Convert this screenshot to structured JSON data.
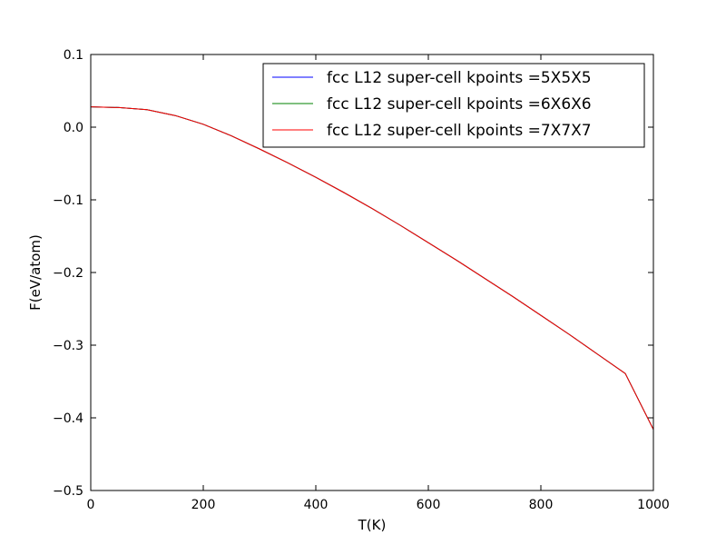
{
  "chart_data": {
    "type": "line",
    "title": "",
    "xlabel": "T(K)",
    "ylabel": "F(eV/atom)",
    "xlim": [
      0,
      1000
    ],
    "ylim": [
      -0.5,
      0.1
    ],
    "xticks": [
      0,
      200,
      400,
      600,
      800,
      1000
    ],
    "xtick_labels": [
      "0",
      "200",
      "400",
      "600",
      "800",
      "1000"
    ],
    "yticks": [
      0.1,
      0.0,
      -0.1,
      -0.2,
      -0.3,
      -0.4,
      -0.5
    ],
    "ytick_labels": [
      "0.1",
      "0.0",
      "−0.1",
      "−0.2",
      "−0.3",
      "−0.4",
      "−0.5"
    ],
    "grid": false,
    "legend_position": "top-right",
    "x": [
      0,
      50,
      100,
      150,
      200,
      250,
      300,
      350,
      400,
      450,
      500,
      550,
      600,
      650,
      700,
      750,
      800,
      850,
      900,
      950,
      1000
    ],
    "series": [
      {
        "name": "fcc L12 super-cell kpoints =5X5X5",
        "color": "#0000ff",
        "values": [
          0.028,
          0.027,
          0.024,
          0.016,
          0.004,
          -0.012,
          -0.03,
          -0.049,
          -0.069,
          -0.09,
          -0.112,
          -0.135,
          -0.159,
          -0.183,
          -0.208,
          -0.233,
          -0.259,
          -0.285,
          -0.312,
          -0.339,
          -0.416
        ]
      },
      {
        "name": "fcc L12 super-cell kpoints =6X6X6",
        "color": "#008000",
        "values": [
          0.028,
          0.027,
          0.024,
          0.016,
          0.004,
          -0.012,
          -0.03,
          -0.049,
          -0.069,
          -0.09,
          -0.112,
          -0.135,
          -0.159,
          -0.183,
          -0.208,
          -0.233,
          -0.259,
          -0.285,
          -0.312,
          -0.339,
          -0.416
        ]
      },
      {
        "name": "fcc L12 super-cell kpoints =7X7X7",
        "color": "#ff0000",
        "values": [
          0.028,
          0.027,
          0.024,
          0.016,
          0.004,
          -0.012,
          -0.03,
          -0.049,
          -0.069,
          -0.09,
          -0.112,
          -0.135,
          -0.159,
          -0.183,
          -0.208,
          -0.233,
          -0.259,
          -0.285,
          -0.312,
          -0.339,
          -0.416
        ]
      }
    ]
  }
}
